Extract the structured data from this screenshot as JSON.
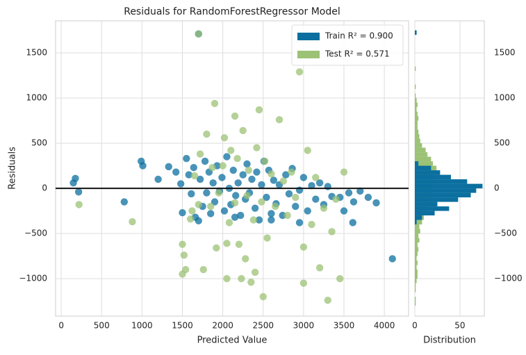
{
  "chart_data": [
    {
      "type": "scatter",
      "title": "Residuals for RandomForestRegressor Model",
      "xlabel": "Predicted Value",
      "ylabel": "Residuals",
      "xlim": [
        -70,
        4300
      ],
      "ylim": [
        -1415,
        1855
      ],
      "xticks": [
        0,
        500,
        1000,
        1500,
        2000,
        2500,
        3000,
        3500,
        4000
      ],
      "yticks": [
        {
          "value": -1000,
          "label": "−1000"
        },
        {
          "value": -500,
          "label": "−500"
        },
        0,
        500,
        1000,
        1500
      ],
      "grid": true,
      "hline": 0,
      "legend": "upper right",
      "series": [
        {
          "name": "Train R² = 0.900",
          "color": "#0b6f9f",
          "x": [
            150,
            175,
            215,
            780,
            990,
            1010,
            1200,
            1330,
            1420,
            1480,
            1500,
            1550,
            1580,
            1610,
            1640,
            1660,
            1700,
            1700,
            1720,
            1750,
            1780,
            1800,
            1830,
            1850,
            1880,
            1900,
            1930,
            1960,
            1990,
            2020,
            2050,
            2080,
            2100,
            2130,
            2160,
            2190,
            2220,
            2250,
            2280,
            2300,
            2330,
            2360,
            2400,
            2420,
            2450,
            2480,
            2510,
            2540,
            2570,
            2600,
            2630,
            2660,
            2700,
            2740,
            2780,
            2820,
            2860,
            2900,
            2950,
            3000,
            3050,
            3100,
            3150,
            3200,
            3250,
            3300,
            3350,
            3450,
            3500,
            3560,
            3620,
            3700,
            3800,
            3900,
            4100,
            3610,
            2950,
            2600,
            2150
          ],
          "values": [
            60,
            110,
            -40,
            -150,
            300,
            250,
            100,
            240,
            180,
            50,
            -270,
            330,
            150,
            -60,
            230,
            -320,
            1710,
            -360,
            100,
            -200,
            300,
            -50,
            180,
            -280,
            60,
            -150,
            250,
            -30,
            120,
            -250,
            350,
            0,
            -180,
            200,
            -80,
            60,
            -300,
            150,
            -120,
            270,
            -50,
            100,
            -220,
            180,
            -350,
            40,
            300,
            -100,
            200,
            -280,
            90,
            -170,
            40,
            -300,
            150,
            -60,
            220,
            -200,
            -20,
            120,
            -250,
            30,
            -120,
            60,
            -180,
            20,
            -90,
            -100,
            -250,
            -50,
            -150,
            -30,
            -100,
            -160,
            -780,
            -380,
            -380,
            -350,
            -320
          ]
        },
        {
          "name": "Test R² = 0.571",
          "color": "#9cc275",
          "x": [
            220,
            880,
            1500,
            1500,
            1520,
            1540,
            1600,
            1620,
            1650,
            1700,
            1720,
            1760,
            1800,
            1850,
            1870,
            1900,
            1920,
            1950,
            2000,
            2020,
            2050,
            2050,
            2080,
            2100,
            2150,
            2150,
            2180,
            2200,
            2230,
            2250,
            2280,
            2300,
            2320,
            2350,
            2380,
            2400,
            2420,
            2450,
            2480,
            2500,
            2520,
            2550,
            2600,
            2650,
            2700,
            2750,
            2800,
            2850,
            2900,
            2950,
            3000,
            3000,
            3050,
            3100,
            3150,
            3200,
            3250,
            3300,
            3350,
            3400,
            3450,
            3500,
            1700
          ],
          "values": [
            -180,
            -370,
            -620,
            -950,
            -740,
            -900,
            -340,
            -250,
            140,
            -180,
            380,
            -900,
            600,
            -200,
            230,
            940,
            -660,
            -50,
            250,
            560,
            -1000,
            -610,
            -380,
            420,
            -160,
            800,
            330,
            -620,
            -1000,
            640,
            -780,
            -80,
            200,
            -1040,
            -350,
            -930,
            450,
            870,
            -150,
            -1200,
            300,
            -550,
            160,
            -200,
            760,
            80,
            -300,
            180,
            -100,
            1290,
            -650,
            -1050,
            420,
            -400,
            120,
            -880,
            -220,
            -1240,
            -480,
            -120,
            -1000,
            180,
            1710
          ]
        }
      ]
    },
    {
      "type": "histogram",
      "orientation": "horizontal",
      "xlabel": "Distribution",
      "xlim": [
        0,
        77
      ],
      "ylim": [
        -1415,
        1855
      ],
      "xticks": [
        0,
        50
      ],
      "yticks": [
        {
          "value": -1000,
          "label": "−1000"
        },
        {
          "value": -500,
          "label": "−500"
        },
        0,
        500,
        1000,
        1500
      ],
      "grid": true,
      "bins": [
        -1300,
        -1250,
        -1200,
        -1150,
        -1100,
        -1050,
        -1000,
        -950,
        -900,
        -850,
        -800,
        -750,
        -700,
        -650,
        -600,
        -550,
        -500,
        -450,
        -400,
        -350,
        -300,
        -250,
        -200,
        -150,
        -100,
        -50,
        0,
        50,
        100,
        150,
        200,
        250,
        300,
        350,
        400,
        450,
        500,
        550,
        600,
        650,
        700,
        750,
        800,
        850,
        900,
        950,
        1000,
        1050,
        1100,
        1150,
        1200,
        1250,
        1300,
        1350,
        1400,
        1450,
        1500,
        1550,
        1600,
        1650,
        1700,
        1750
      ],
      "series": [
        {
          "name": "Test R² = 0.571",
          "color": "#9cc275",
          "values": [
            1,
            1,
            0,
            1,
            1,
            2,
            3,
            3,
            2,
            3,
            2,
            3,
            4,
            3,
            5,
            4,
            6,
            5,
            8,
            10,
            12,
            14,
            16,
            18,
            20,
            22,
            22,
            20,
            20,
            22,
            24,
            20,
            18,
            14,
            12,
            8,
            6,
            5,
            4,
            3,
            3,
            4,
            3,
            2,
            3,
            2,
            1,
            0,
            1,
            0,
            0,
            0,
            1,
            0,
            0,
            0,
            0,
            0,
            0,
            0,
            1
          ]
        },
        {
          "name": "Train R² = 0.900",
          "color": "#0b6f9f",
          "values": [
            0,
            0,
            0,
            0,
            0,
            0,
            0,
            0,
            0,
            0,
            0,
            0,
            0,
            0,
            0,
            0,
            0,
            0,
            2,
            8,
            22,
            38,
            25,
            48,
            62,
            68,
            75,
            58,
            40,
            28,
            18,
            4,
            0,
            0,
            0,
            0,
            0,
            0,
            0,
            0,
            0,
            0,
            0,
            0,
            0,
            0,
            0,
            0,
            0,
            0,
            0,
            0,
            0,
            0,
            0,
            0,
            0,
            0,
            0,
            0,
            2
          ]
        }
      ]
    }
  ]
}
